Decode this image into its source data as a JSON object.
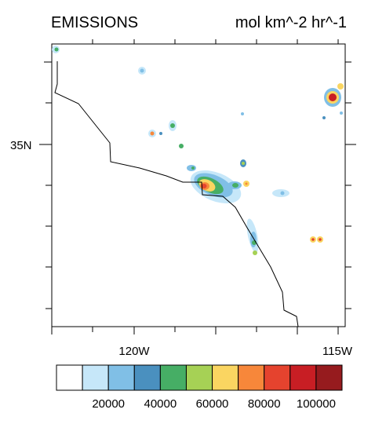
{
  "header": {
    "title": "EMISSIONS",
    "units": "mol km^-2 hr^-1"
  },
  "map": {
    "lat_labels": [
      "35N"
    ],
    "lon_labels": [
      "120W",
      "115W"
    ],
    "coastline_color": "#000000"
  },
  "colorbar": {
    "colors": [
      "#ffffff",
      "#c6e7f9",
      "#80bfe6",
      "#4a90bf",
      "#46ae65",
      "#a6d155",
      "#fad561",
      "#f7873a",
      "#e5432e",
      "#c81e24",
      "#961b1e"
    ],
    "tick_labels": [
      "20000",
      "40000",
      "60000",
      "80000",
      "100000"
    ]
  }
}
